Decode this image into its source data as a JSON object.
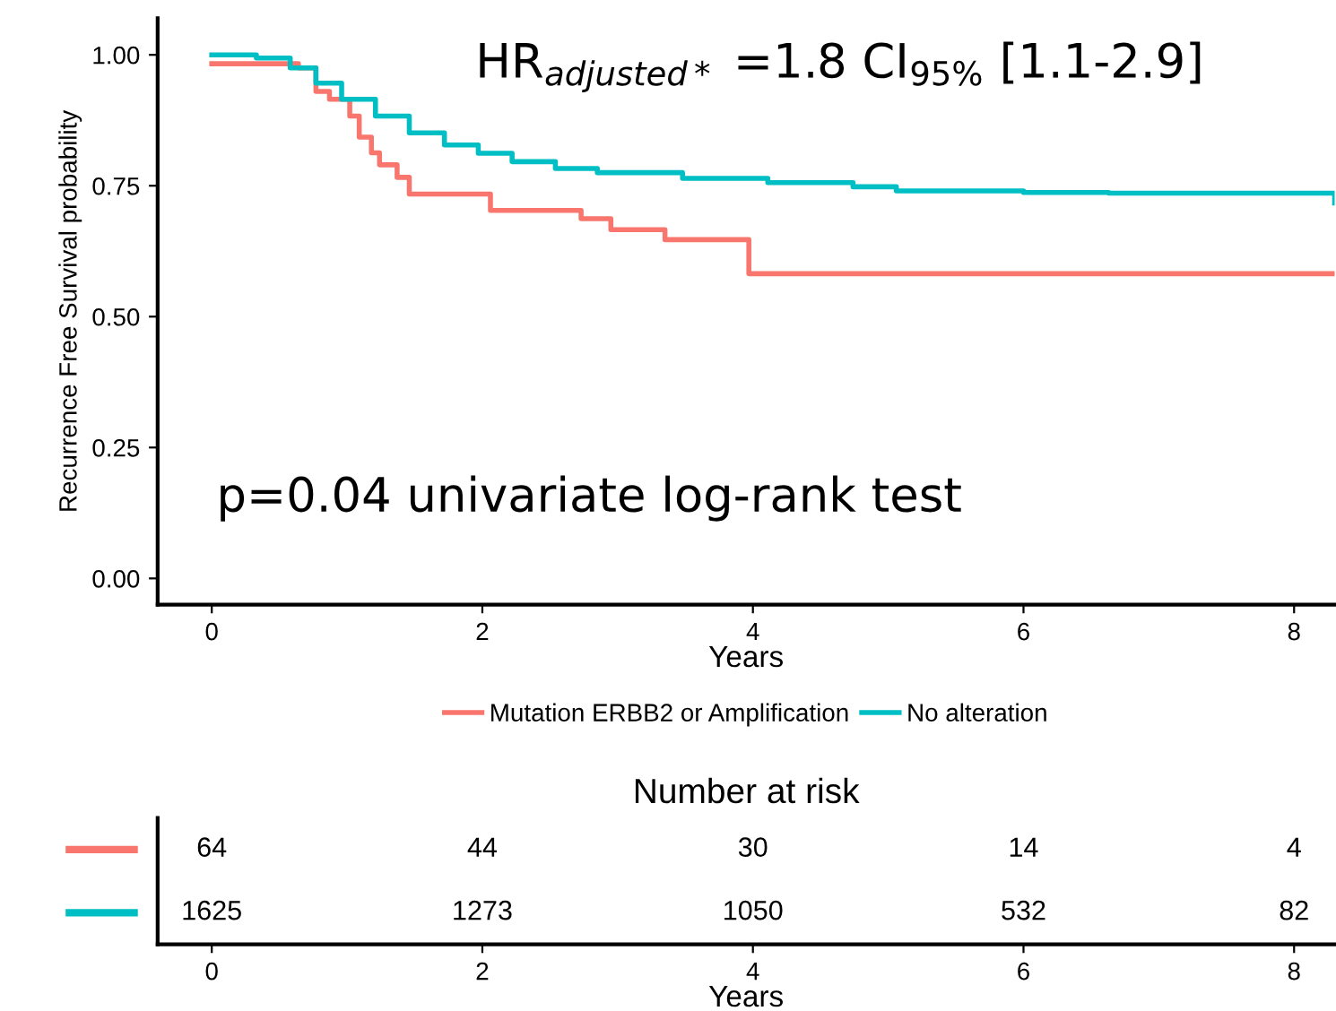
{
  "chart_data": [
    {
      "type": "step",
      "xlabel": "Years",
      "ylabel": "Recurrence Free Survival probability",
      "xlim": [
        -0.4,
        8.3
      ],
      "ylim": [
        -0.05,
        1.07
      ],
      "xticks": [
        0,
        2,
        4,
        6,
        8
      ],
      "yticks": [
        {
          "value": 0,
          "label": "0.00"
        },
        {
          "value": 0.25,
          "label": "0.25"
        },
        {
          "value": 0.5,
          "label": "0.50"
        },
        {
          "value": 0.75,
          "label": "0.75"
        },
        {
          "value": 1,
          "label": "1.00"
        }
      ],
      "grid": false,
      "legend": "bottom",
      "line_style": "solid",
      "series": [
        {
          "name": "Mutation ERBB2 or Amplification",
          "color": "#f8766d",
          "x": [
            0,
            0.64,
            0.77,
            0.87,
            1.02,
            1.09,
            1.18,
            1.24,
            1.37,
            1.46,
            2.06,
            2.73,
            2.95,
            3.35,
            3.97,
            8.3
          ],
          "values": [
            0.983,
            0.975,
            0.93,
            0.915,
            0.883,
            0.843,
            0.813,
            0.79,
            0.766,
            0.734,
            0.703,
            0.687,
            0.666,
            0.647,
            0.582,
            0.582
          ]
        },
        {
          "name": "No alteration",
          "color": "#00bfc4",
          "x": [
            0,
            0.33,
            0.58,
            0.77,
            0.96,
            1.21,
            1.46,
            1.72,
            1.97,
            2.22,
            2.54,
            2.85,
            3.48,
            4.11,
            4.74,
            5.06,
            6.0,
            6.63,
            8.2,
            8.3
          ],
          "values": [
            1.0,
            0.994,
            0.975,
            0.946,
            0.915,
            0.883,
            0.851,
            0.828,
            0.812,
            0.796,
            0.783,
            0.775,
            0.764,
            0.756,
            0.748,
            0.74,
            0.737,
            0.736,
            0.736,
            0.717
          ]
        }
      ],
      "annotations": [
        "HR$_{adjusted*}$ =1.8 CI$_{95%}$ [1.1-2.9]",
        "p=0.04 univariate log-rank test"
      ]
    },
    {
      "type": "heatmap",
      "title": "Number at risk",
      "xlabel": "Years",
      "categories": [
        "0",
        "2",
        "4",
        "6",
        "8"
      ],
      "y_categories": [
        null,
        null
      ],
      "data_labels": true,
      "cells": [
        [
          64,
          44,
          30,
          14,
          4
        ],
        [
          1625,
          1273,
          1050,
          532,
          82
        ]
      ]
    }
  ]
}
